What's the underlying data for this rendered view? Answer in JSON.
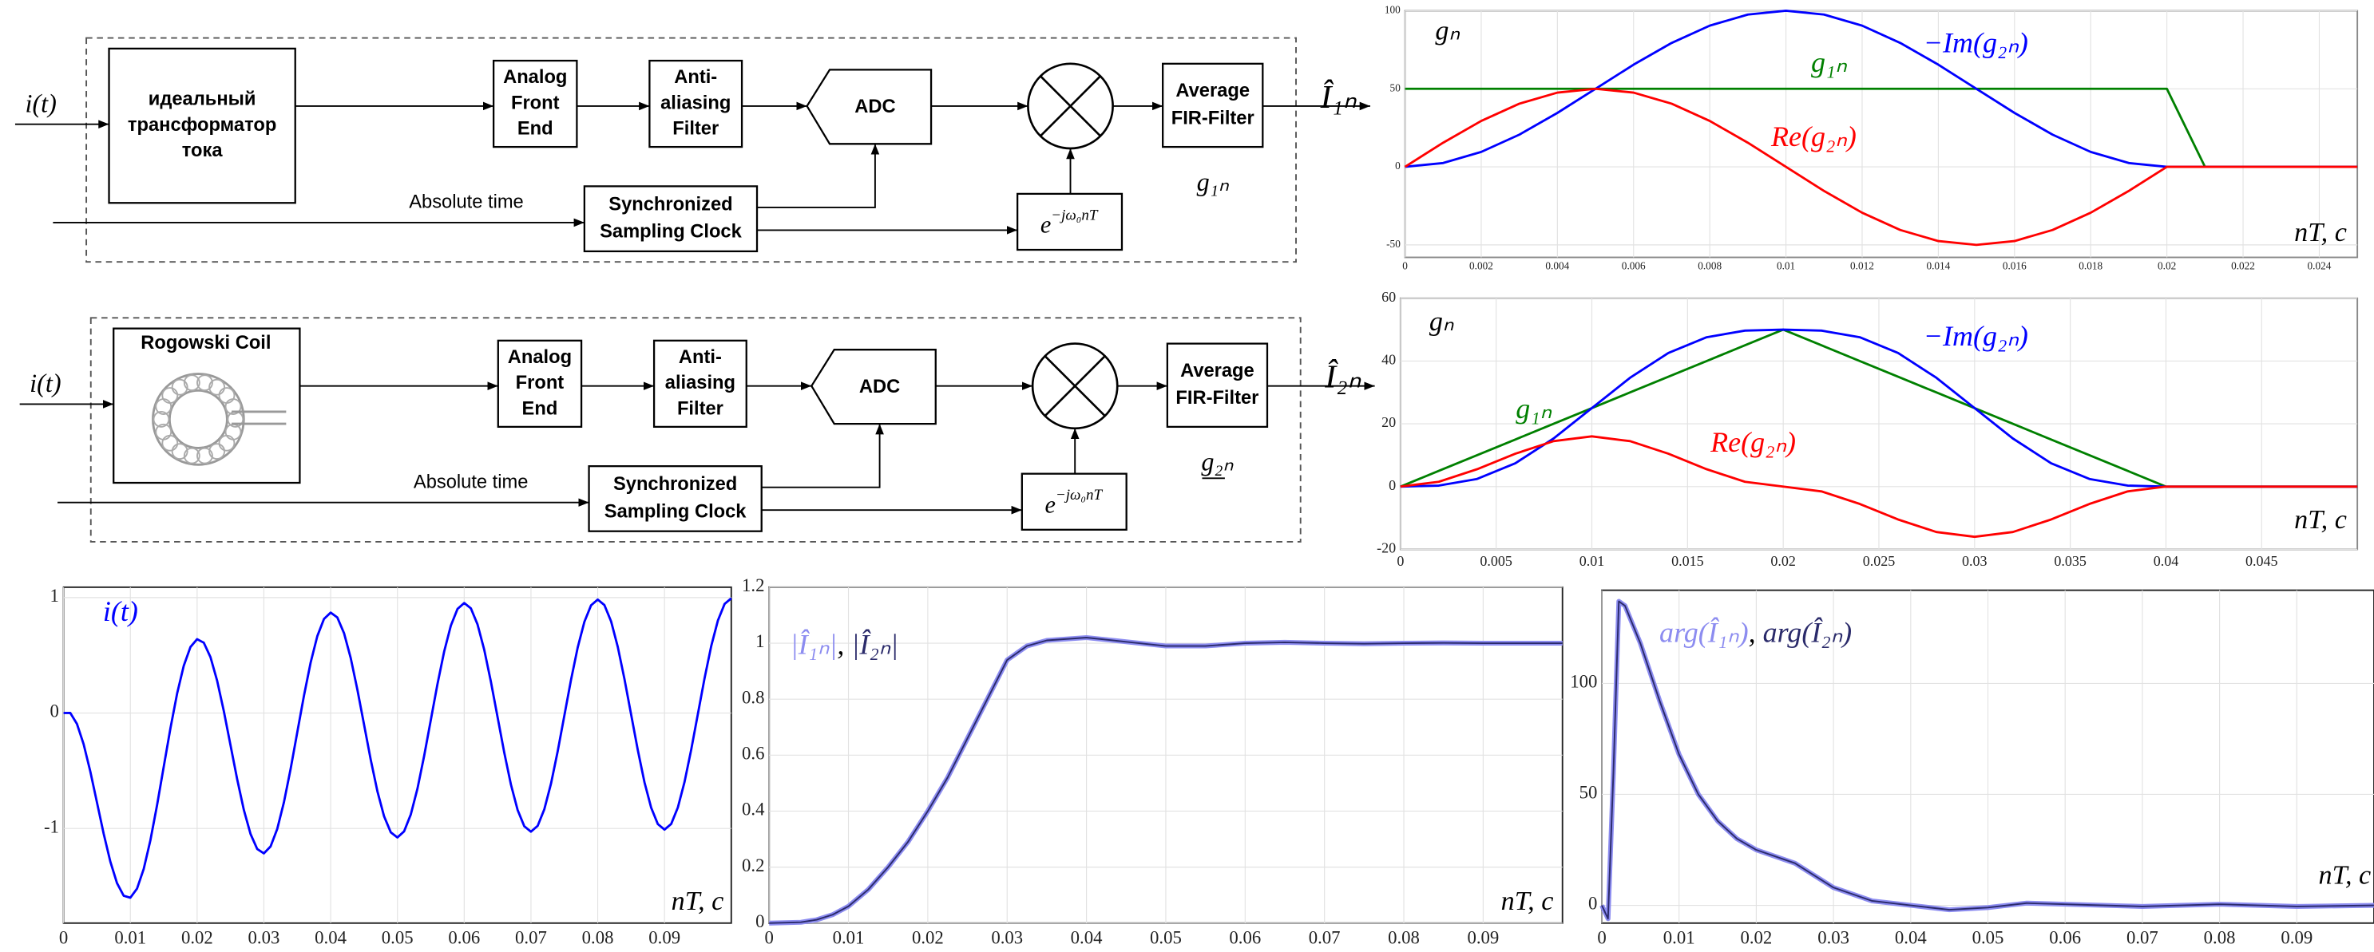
{
  "diagrams": [
    {
      "input": "i(t)",
      "sensor": [
        "идеальный",
        "трансформатор",
        "тока"
      ],
      "afe": [
        "Analog",
        "Front",
        "End"
      ],
      "aaf": [
        "Anti-",
        "aliasing",
        "Filter"
      ],
      "adc": "ADC",
      "fir": [
        "Average",
        "FIR-Filter"
      ],
      "time": "Absolute time",
      "clock": [
        "Synchronized",
        "Sampling Clock"
      ],
      "osc": {
        "base": "e",
        "exp": "−jω₀nT"
      },
      "output": "Î₁ₙ",
      "filter": "g₁ₙ",
      "filter_underline": false
    },
    {
      "input": "i(t)",
      "sensor": [
        "Rogowski Coil"
      ],
      "afe": [
        "Analog",
        "Front",
        "End"
      ],
      "aaf": [
        "Anti-",
        "aliasing",
        "Filter"
      ],
      "adc": "ADC",
      "fir": [
        "Average",
        "FIR-Filter"
      ],
      "time": "Absolute time",
      "clock": [
        "Synchronized",
        "Sampling Clock"
      ],
      "osc": {
        "base": "e",
        "exp": "−jω₀nT"
      },
      "output": "Î₂ₙ",
      "filter": "g₂ₙ",
      "filter_underline": true
    }
  ],
  "chart_data": [
    {
      "type": "line",
      "ylabel": "gₙ",
      "xlabel": "nT, c",
      "x": [
        0,
        0.001,
        0.002,
        0.003,
        0.004,
        0.005,
        0.006,
        0.007,
        0.008,
        0.009,
        0.01,
        0.011,
        0.012,
        0.013,
        0.014,
        0.015,
        0.016,
        0.017,
        0.018,
        0.019,
        0.02,
        0.021,
        0.022,
        0.023,
        0.024,
        0.025
      ],
      "series": [
        {
          "name": "g₁ₙ",
          "color": "#008000",
          "values": [
            50,
            50,
            50,
            50,
            50,
            50,
            50,
            50,
            50,
            50,
            50,
            50,
            50,
            50,
            50,
            50,
            50,
            50,
            50,
            50,
            50,
            0,
            0,
            0,
            0,
            0
          ]
        },
        {
          "name": "−Im(g₂ₙ)",
          "color": "#0000ff",
          "values": [
            0,
            2.45,
            9.55,
            20.61,
            34.55,
            50,
            65.45,
            79.39,
            90.45,
            97.55,
            100,
            97.55,
            90.45,
            79.39,
            65.45,
            50,
            34.55,
            20.61,
            9.55,
            2.45,
            0,
            0,
            0,
            0,
            0,
            0
          ]
        },
        {
          "name": "Re(g₂ₙ)",
          "color": "#ff0000",
          "values": [
            0,
            15.45,
            29.39,
            40.45,
            47.55,
            50,
            47.55,
            40.45,
            29.39,
            15.45,
            0,
            -15.45,
            -29.39,
            -40.45,
            -47.55,
            -50,
            -47.55,
            -40.45,
            -29.39,
            -15.45,
            0,
            0,
            0,
            0,
            0,
            0
          ]
        }
      ],
      "xlim": [
        0,
        0.025
      ],
      "ylim": [
        -58,
        100
      ],
      "xticks": [
        0,
        0.002,
        0.004,
        0.006,
        0.008,
        0.01,
        0.012,
        0.014,
        0.016,
        0.018,
        0.02,
        0.022,
        0.024
      ],
      "yticks": [
        -50,
        0,
        50,
        100
      ],
      "grid": true
    },
    {
      "type": "line",
      "ylabel": "gₙ",
      "xlabel": "nT, c",
      "x": [
        0,
        0.002,
        0.004,
        0.006,
        0.008,
        0.01,
        0.012,
        0.014,
        0.016,
        0.018,
        0.02,
        0.022,
        0.024,
        0.026,
        0.028,
        0.03,
        0.032,
        0.034,
        0.036,
        0.038,
        0.04,
        0.042,
        0.044,
        0.046,
        0.048,
        0.05
      ],
      "series": [
        {
          "name": "g₁ₙ",
          "color": "#008000",
          "values": [
            0,
            5,
            10,
            15,
            20,
            25,
            30,
            35,
            40,
            45,
            50,
            45,
            40,
            35,
            30,
            25,
            20,
            15,
            10,
            5,
            0,
            0,
            0,
            0,
            0,
            0
          ]
        },
        {
          "name": "−Im(g₂ₙ)",
          "color": "#0000ff",
          "values": [
            0,
            0.32,
            2.43,
            7.43,
            15.32,
            25,
            34.68,
            42.57,
            47.57,
            49.68,
            50,
            49.68,
            47.57,
            42.57,
            34.68,
            25,
            15.32,
            7.43,
            2.43,
            0.32,
            0,
            0,
            0,
            0,
            0,
            0
          ]
        },
        {
          "name": "Re(g₂ₙ)",
          "color": "#ff0000",
          "values": [
            0,
            1.53,
            5.53,
            10.47,
            14.47,
            16,
            14.47,
            10.47,
            5.53,
            1.53,
            0,
            -1.53,
            -5.53,
            -10.47,
            -14.47,
            -16,
            -14.47,
            -10.47,
            -5.53,
            -1.53,
            0,
            0,
            0,
            0,
            0,
            0
          ]
        }
      ],
      "xlim": [
        0,
        0.05
      ],
      "ylim": [
        -20,
        60
      ],
      "xticks": [
        0,
        0.005,
        0.01,
        0.015,
        0.02,
        0.025,
        0.03,
        0.035,
        0.04,
        0.045
      ],
      "yticks": [
        -20,
        0,
        20,
        40,
        60
      ],
      "grid": true
    },
    {
      "type": "line",
      "xlabel": "nT, c",
      "x": [
        0,
        0.001,
        0.002,
        0.003,
        0.004,
        0.005,
        0.006,
        0.007,
        0.008,
        0.009,
        0.01,
        0.011,
        0.012,
        0.013,
        0.014,
        0.015,
        0.016,
        0.017,
        0.018,
        0.019,
        0.02,
        0.021,
        0.022,
        0.023,
        0.024,
        0.025,
        0.026,
        0.027,
        0.028,
        0.029,
        0.03,
        0.031,
        0.032,
        0.033,
        0.034,
        0.035,
        0.036,
        0.037,
        0.038,
        0.039,
        0.04,
        0.041,
        0.042,
        0.043,
        0.044,
        0.045,
        0.046,
        0.047,
        0.048,
        0.049,
        0.05,
        0.051,
        0.052,
        0.053,
        0.054,
        0.055,
        0.056,
        0.057,
        0.058,
        0.059,
        0.06,
        0.061,
        0.062,
        0.063,
        0.064,
        0.065,
        0.066,
        0.067,
        0.068,
        0.069,
        0.07,
        0.071,
        0.072,
        0.073,
        0.074,
        0.075,
        0.076,
        0.077,
        0.078,
        0.079,
        0.08,
        0.081,
        0.082,
        0.083,
        0.084,
        0.085,
        0.086,
        0.087,
        0.088,
        0.089,
        0.09,
        0.091,
        0.092,
        0.093,
        0.094,
        0.095,
        0.096,
        0.097,
        0.098,
        0.099,
        0.1
      ],
      "series": [
        {
          "name": "i(t)",
          "color": "#0000ff",
          "values": [
            0,
            0.001,
            -0.094,
            -0.27,
            -0.506,
            -0.775,
            -1.045,
            -1.287,
            -1.474,
            -1.583,
            -1.6,
            -1.521,
            -1.351,
            -1.103,
            -0.798,
            -0.465,
            -0.133,
            0.168,
            0.41,
            0.572,
            0.64,
            0.609,
            0.484,
            0.279,
            0.016,
            -0.279,
            -0.574,
            -0.84,
            -1.048,
            -1.178,
            -1.216,
            -1.156,
            -1.004,
            -0.773,
            -0.485,
            -0.167,
            0.15,
            0.437,
            0.666,
            0.815,
            0.87,
            0.828,
            0.692,
            0.477,
            0.203,
            -0.1,
            -0.404,
            -0.678,
            -0.895,
            -1.033,
            -1.078,
            -1.025,
            -0.879,
            -0.655,
            -0.372,
            -0.06,
            0.252,
            0.533,
            0.757,
            0.902,
            0.953,
            0.907,
            0.767,
            0.548,
            0.271,
            -0.036,
            -0.343,
            -0.62,
            -0.84,
            -0.981,
            -1.028,
            -0.978,
            -0.834,
            -0.612,
            -0.332,
            -0.022,
            0.288,
            0.568,
            0.79,
            0.933,
            0.983,
            0.935,
            0.794,
            0.573,
            0.295,
            -0.013,
            -0.321,
            -0.6,
            -0.82,
            -0.962,
            -1.01,
            -0.961,
            -0.818,
            -0.597,
            -0.317,
            -0.008,
            0.302,
            0.581,
            0.802,
            0.945,
            0.994
          ]
        }
      ],
      "xlim": [
        0,
        0.1
      ],
      "ylim": [
        -1.82,
        1.09
      ],
      "xticks": [
        0,
        0.01,
        0.02,
        0.03,
        0.04,
        0.05,
        0.06,
        0.07,
        0.08,
        0.09
      ],
      "yticks": [
        -1,
        0,
        1
      ],
      "grid": true
    },
    {
      "type": "line",
      "xlabel": "nT, c",
      "legend_separator": ", ",
      "x": [
        0,
        0.004,
        0.006,
        0.008,
        0.01,
        0.0125,
        0.015,
        0.0175,
        0.02,
        0.0225,
        0.025,
        0.0275,
        0.03,
        0.0325,
        0.035,
        0.04,
        0.045,
        0.05,
        0.055,
        0.06,
        0.065,
        0.07,
        0.075,
        0.08,
        0.085,
        0.09,
        0.095,
        0.1
      ],
      "series": [
        {
          "name": "|Î₁ₙ|",
          "color": "#8c8cf0",
          "values": [
            0,
            0.003,
            0.012,
            0.03,
            0.06,
            0.12,
            0.2,
            0.29,
            0.4,
            0.52,
            0.66,
            0.8,
            0.94,
            0.99,
            1.01,
            1.02,
            1.005,
            0.99,
            0.99,
            1,
            1.003,
            1,
            0.998,
            1,
            1.001,
            1,
            1,
            1
          ]
        },
        {
          "name": "|Î₂ₙ|",
          "color": "#2a2a6a",
          "values": [
            0,
            0.003,
            0.012,
            0.03,
            0.06,
            0.12,
            0.2,
            0.29,
            0.4,
            0.52,
            0.66,
            0.8,
            0.94,
            0.99,
            1.01,
            1.02,
            1.005,
            0.99,
            0.99,
            1,
            1.003,
            1,
            0.998,
            1,
            1.001,
            1,
            1,
            1
          ]
        }
      ],
      "xlim": [
        0,
        0.1
      ],
      "ylim": [
        0,
        1.2
      ],
      "xticks": [
        0,
        0.01,
        0.02,
        0.03,
        0.04,
        0.05,
        0.06,
        0.07,
        0.08,
        0.09
      ],
      "yticks": [
        0,
        0.2,
        0.4,
        0.6,
        0.8,
        1,
        1.2
      ],
      "grid": true
    },
    {
      "type": "line",
      "xlabel": "nT, c",
      "legend_separator": ", ",
      "x": [
        0,
        0.0008,
        0.0015,
        0.0022,
        0.003,
        0.005,
        0.0075,
        0.01,
        0.0125,
        0.015,
        0.0175,
        0.02,
        0.025,
        0.03,
        0.035,
        0.04,
        0.045,
        0.05,
        0.055,
        0.06,
        0.07,
        0.08,
        0.09,
        0.1
      ],
      "series": [
        {
          "name": "arg(Î₁ₙ)",
          "color": "#8c8cf0",
          "values": [
            0,
            -6,
            60,
            137,
            135,
            118,
            92,
            68,
            50,
            38,
            30,
            25,
            19,
            8,
            2,
            0,
            -2,
            -1,
            1,
            0.5,
            -0.5,
            0.5,
            -0.5,
            0
          ]
        },
        {
          "name": "arg(Î₂ₙ)",
          "color": "#2a2a6a",
          "values": [
            0,
            -6,
            60,
            137,
            135,
            118,
            92,
            68,
            50,
            38,
            30,
            25,
            19,
            8,
            2,
            0,
            -2,
            -1,
            1,
            0.5,
            -0.5,
            0.5,
            -0.5,
            0
          ]
        }
      ],
      "xlim": [
        0,
        0.1
      ],
      "ylim": [
        -8,
        142
      ],
      "xticks": [
        0,
        0.01,
        0.02,
        0.03,
        0.04,
        0.05,
        0.06,
        0.07,
        0.08,
        0.09
      ],
      "yticks": [
        0,
        50,
        100
      ],
      "grid": true
    }
  ]
}
